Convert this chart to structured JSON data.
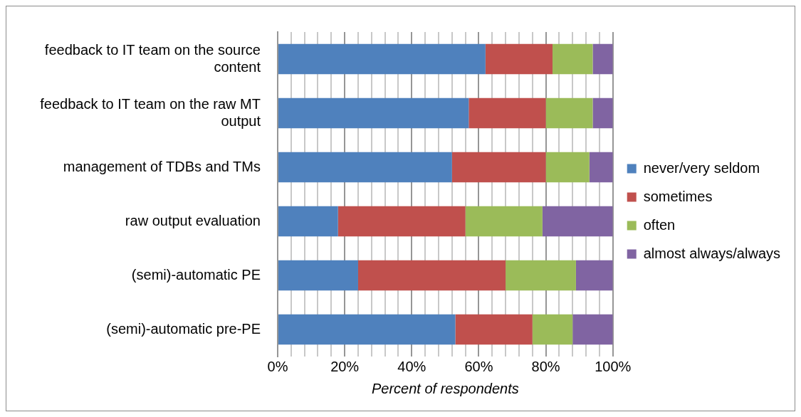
{
  "chart_data": {
    "type": "bar",
    "orientation": "horizontal",
    "stacked": true,
    "xlabel": "Percent of respondents",
    "categories": [
      "feedback to IT team on the source content",
      "feedback to IT team on the raw MT output",
      "management of TDBs and TMs",
      "raw output evaluation",
      "(semi)-automatic PE",
      "(semi)-automatic pre-PE"
    ],
    "series": [
      {
        "name": "never/very seldom",
        "color": "#4f81bd",
        "values": [
          62,
          57,
          52,
          18,
          24,
          53
        ]
      },
      {
        "name": "sometimes",
        "color": "#c0504d",
        "values": [
          20,
          23,
          28,
          38,
          44,
          23
        ]
      },
      {
        "name": "often",
        "color": "#9bbb59",
        "values": [
          12,
          14,
          13,
          23,
          21,
          12
        ]
      },
      {
        "name": "almost always/always",
        "color": "#8064a2",
        "values": [
          6,
          6,
          7,
          21,
          11,
          12
        ]
      }
    ],
    "xlim": [
      0,
      100
    ],
    "xticks": [
      {
        "value": 0,
        "label": "0%"
      },
      {
        "value": 4,
        "label": null
      },
      {
        "value": 8,
        "label": null
      },
      {
        "value": 12,
        "label": null
      },
      {
        "value": 16,
        "label": null
      },
      {
        "value": 20,
        "label": "20%"
      },
      {
        "value": 24,
        "label": null
      },
      {
        "value": 28,
        "label": null
      },
      {
        "value": 32,
        "label": null
      },
      {
        "value": 36,
        "label": null
      },
      {
        "value": 40,
        "label": "40%"
      },
      {
        "value": 44,
        "label": null
      },
      {
        "value": 48,
        "label": null
      },
      {
        "value": 52,
        "label": null
      },
      {
        "value": 56,
        "label": null
      },
      {
        "value": 60,
        "label": "60%"
      },
      {
        "value": 64,
        "label": null
      },
      {
        "value": 68,
        "label": null
      },
      {
        "value": 72,
        "label": null
      },
      {
        "value": 76,
        "label": null
      },
      {
        "value": 80,
        "label": "80%"
      },
      {
        "value": 84,
        "label": null
      },
      {
        "value": 88,
        "label": null
      },
      {
        "value": 92,
        "label": null
      },
      {
        "value": 96,
        "label": null
      },
      {
        "value": 100,
        "label": "100%"
      }
    ],
    "grid": "x",
    "legend": "right"
  }
}
